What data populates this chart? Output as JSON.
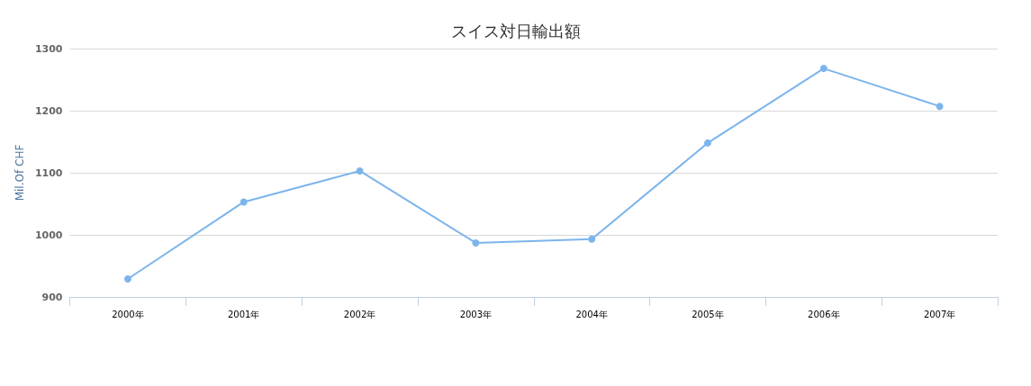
{
  "chart_data": {
    "type": "line",
    "title": "スイス対日輸出額",
    "ylabel": "Mil.Of CHF",
    "categories": [
      "2000年",
      "2001年",
      "2002年",
      "2003年",
      "2004年",
      "2005年",
      "2006年",
      "2007年"
    ],
    "series": [
      {
        "color": "#7cb5ec",
        "values": [
          929,
          1053,
          1103,
          987,
          993,
          1148,
          1268,
          1207
        ]
      }
    ],
    "ylim": [
      900,
      1300
    ],
    "yticks": [
      900,
      1000,
      1100,
      1200,
      1300
    ],
    "grid": "y",
    "marker": "circle",
    "line_style": "solid"
  }
}
